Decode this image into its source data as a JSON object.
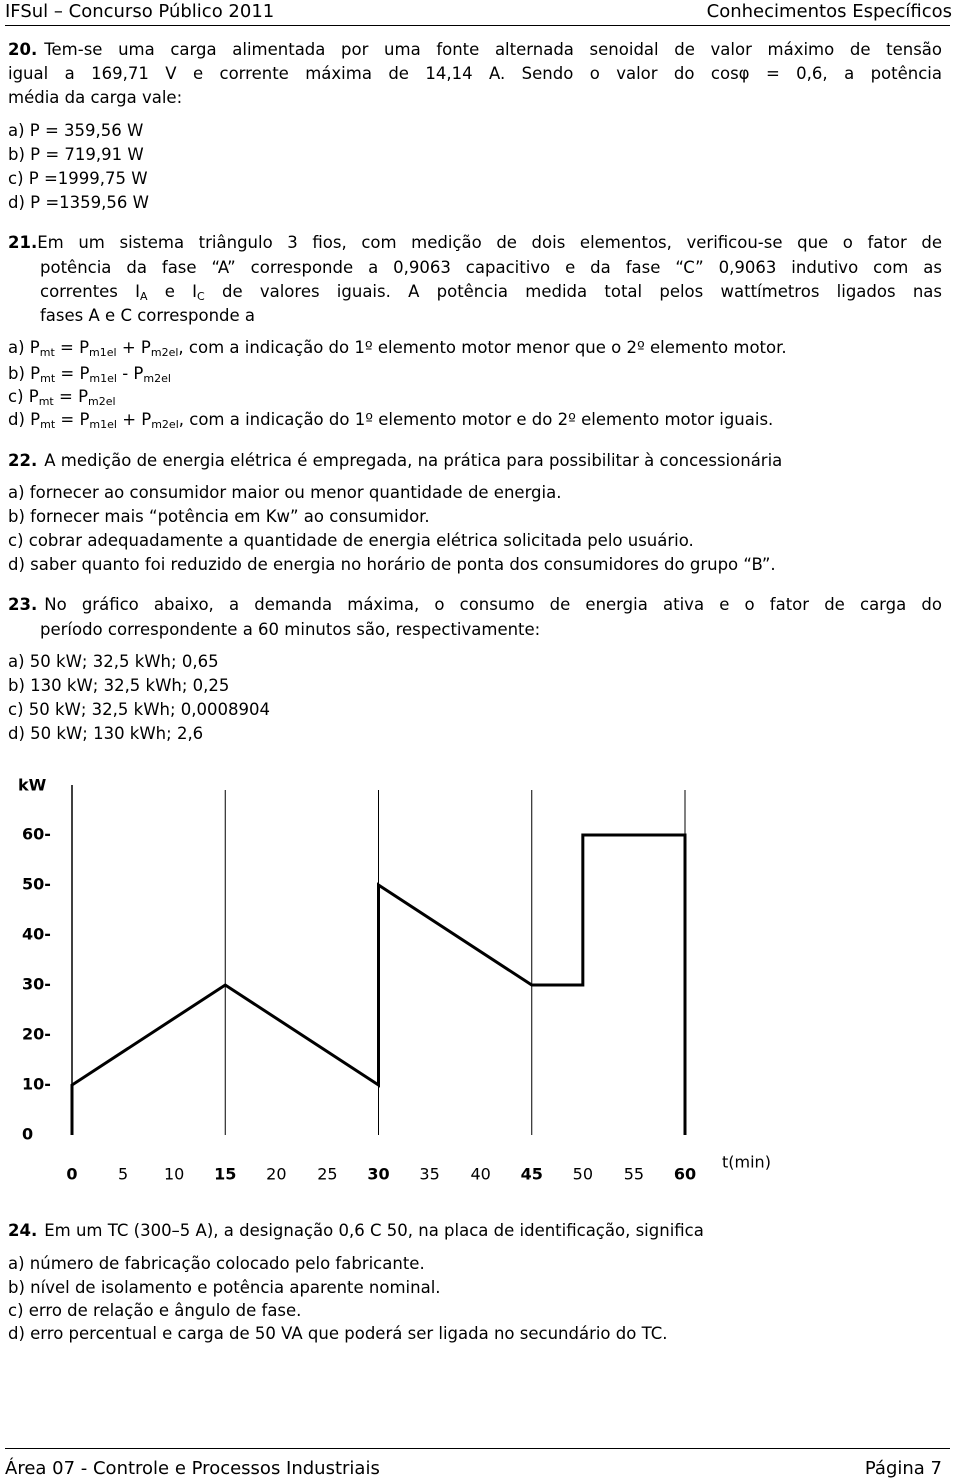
{
  "header": {
    "left": "IFSul – Concurso Público 2011",
    "right": "Conhecimentos Específicos"
  },
  "questions": [
    {
      "number": "20.",
      "lines": [
        [
          "Tem-se uma carga alimentada por uma fonte alternada senoidal de valor máximo de tensão"
        ],
        [
          "igual a 169,71 V e corrente máxima de 14,14 A. Sendo o valor do cosφ = 0,6, a potência"
        ],
        [
          "média da carga vale:"
        ]
      ],
      "options": [
        [
          "a) P =  359,56 W"
        ],
        [
          "b) P =  719,91 W"
        ],
        [
          "c) P =1999,75 W"
        ],
        [
          "d) P =1359,56 W"
        ]
      ]
    },
    {
      "number": "21.",
      "lines": [
        [
          "Em um sistema triângulo 3 fios, com medição de dois elementos, verificou-se que o fator de"
        ],
        [
          "potência da fase “A” corresponde a 0,9063  capacitivo e da fase “C” 0,9063 indutivo com as"
        ],
        [
          "correntes I",
          {
            "sub": "A"
          },
          " e I",
          {
            "sub": "C"
          },
          " de valores iguais. A potência medida total pelos wattímetros ligados nas"
        ],
        [
          "fases A e C corresponde a"
        ]
      ],
      "options": [
        [
          "a) P",
          {
            "sub": "mt"
          },
          " = P",
          {
            "sub": "m1el"
          },
          " + P",
          {
            "sub": "m2el"
          },
          ", com a indicação do 1º elemento motor menor que o 2º elemento motor."
        ],
        [
          "b) P",
          {
            "sub": "mt"
          },
          " = P",
          {
            "sub": "m1el"
          },
          " - P",
          {
            "sub": "m2el"
          }
        ],
        [
          "c) P",
          {
            "sub": "mt"
          },
          " = P",
          {
            "sub": "m2el"
          }
        ],
        [
          "d) P",
          {
            "sub": "mt"
          },
          " = P",
          {
            "sub": "m1el"
          },
          " + P",
          {
            "sub": "m2el"
          },
          ", com a indicação do 1º elemento motor e do 2º elemento motor iguais."
        ]
      ]
    },
    {
      "number": "22.",
      "lines": [
        [
          "A medição de energia elétrica é empregada, na prática para possibilitar à concessionária"
        ]
      ],
      "options": [
        [
          "a) fornecer ao consumidor maior ou menor quantidade de energia."
        ],
        [
          "b) fornecer mais “potência em Kw” ao consumidor."
        ],
        [
          "c) cobrar adequadamente a quantidade de energia elétrica solicitada pelo usuário."
        ],
        [
          "d) saber quanto foi reduzido de energia no horário de ponta dos consumidores do grupo “B”."
        ]
      ]
    },
    {
      "number": "23.",
      "lines": [
        [
          "No gráfico abaixo, a demanda máxima, o consumo de energia ativa e o fator de carga do"
        ],
        [
          "período correspondente a 60 minutos são, respectivamente:"
        ]
      ],
      "options": [
        [
          "a)  50 kW; 32,5 kWh; 0,65"
        ],
        [
          "b)  130 kW; 32,5 kWh; 0,25"
        ],
        [
          "c)  50 kW; 32,5 kWh; 0,0008904"
        ],
        [
          "d)  50 kW; 130 kWh; 2,6"
        ]
      ]
    },
    {
      "number": "24.",
      "lines": [
        [
          "Em um TC (300–5 A), a designação 0,6 C 50, na placa de identificação, significa"
        ]
      ],
      "options": [
        [
          "a) número de fabricação colocado pelo fabricante."
        ],
        [
          "b) nível de isolamento e potência aparente nominal."
        ],
        [
          "c) erro de relação e ângulo de fase."
        ],
        [
          "d) erro percentual e carga de 50 VA que poderá ser ligada no secundário do TC."
        ]
      ]
    }
  ],
  "chart": {
    "type": "line",
    "ylabel": "kW",
    "xlabel": "t(min)",
    "color": "#000000",
    "x": [
      0,
      0,
      15,
      30,
      30,
      45,
      50,
      50,
      60,
      60
    ],
    "values": [
      0,
      10,
      30,
      10,
      50,
      30,
      30,
      60,
      60,
      0
    ],
    "xlim": [
      0,
      60
    ],
    "ylim": [
      0,
      70
    ],
    "xticks": [
      0,
      5,
      10,
      15,
      20,
      25,
      30,
      35,
      40,
      45,
      50,
      55,
      60
    ],
    "yticks": [
      0,
      {
        "value": 10,
        "label": "10-"
      },
      {
        "value": 20,
        "label": "20-"
      },
      {
        "value": 30,
        "label": "30-"
      },
      {
        "value": 40,
        "label": "40-"
      },
      {
        "value": 50,
        "label": "50-"
      },
      {
        "value": 60,
        "label": "60-"
      }
    ],
    "x_gridlines": [
      15,
      30,
      45,
      60
    ]
  },
  "footer": {
    "left": "Área 07 - Controle e Processos Industriais",
    "right": "Página 7"
  }
}
